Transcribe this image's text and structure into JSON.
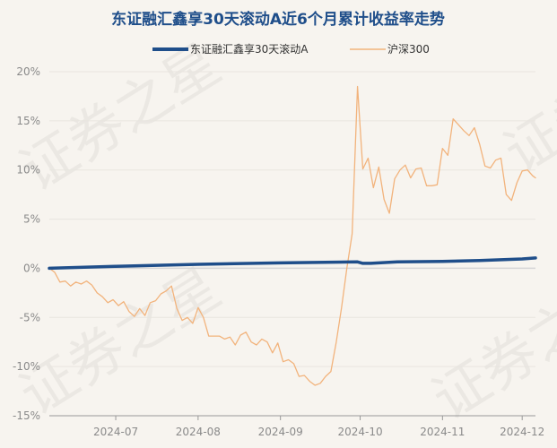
{
  "chart_data": {
    "type": "line",
    "title": "东证融汇鑫享30天滚动A近6个月累计收益率走势",
    "xlabel": "",
    "ylabel": "",
    "ylim": [
      -15,
      20
    ],
    "yticks": [
      "20%",
      "15%",
      "10%",
      "5%",
      "0%",
      "-5%",
      "-10%",
      "-15%"
    ],
    "yticks_values": [
      20,
      15,
      10,
      5,
      0,
      -5,
      -10,
      -15
    ],
    "xticks": [
      "2024-07",
      "2024-08",
      "2024-09",
      "2024-10",
      "2024-11",
      "2024-12"
    ],
    "x_start": "2024-06-06",
    "x_end": "2024-12-06",
    "xtick_dates": [
      "2024-07-01",
      "2024-08-01",
      "2024-09-01",
      "2024-10-01",
      "2024-11-01",
      "2024-12-01"
    ],
    "grid": "horizontal",
    "legend": "top-center",
    "series": [
      {
        "name": "东证融汇鑫享30天滚动A",
        "color": "#1f4e8a",
        "points": [
          [
            "2024-06-06",
            0.0
          ],
          [
            "2024-07-01",
            0.2
          ],
          [
            "2024-08-01",
            0.4
          ],
          [
            "2024-09-01",
            0.55
          ],
          [
            "2024-09-30",
            0.65
          ],
          [
            "2024-10-02",
            0.5
          ],
          [
            "2024-10-05",
            0.5
          ],
          [
            "2024-10-15",
            0.65
          ],
          [
            "2024-11-01",
            0.7
          ],
          [
            "2024-11-15",
            0.8
          ],
          [
            "2024-12-01",
            0.95
          ],
          [
            "2024-12-06",
            1.05
          ]
        ]
      },
      {
        "name": "沪深300",
        "color": "#f2b37c",
        "points": [
          [
            "2024-06-06",
            0.0
          ],
          [
            "2024-06-08",
            -0.4
          ],
          [
            "2024-06-10",
            -1.4
          ],
          [
            "2024-06-12",
            -1.3
          ],
          [
            "2024-06-14",
            -1.8
          ],
          [
            "2024-06-16",
            -1.4
          ],
          [
            "2024-06-18",
            -1.6
          ],
          [
            "2024-06-20",
            -1.3
          ],
          [
            "2024-06-22",
            -1.7
          ],
          [
            "2024-06-24",
            -2.5
          ],
          [
            "2024-06-26",
            -2.9
          ],
          [
            "2024-06-28",
            -3.5
          ],
          [
            "2024-06-30",
            -3.2
          ],
          [
            "2024-07-02",
            -3.8
          ],
          [
            "2024-07-04",
            -3.4
          ],
          [
            "2024-07-06",
            -4.4
          ],
          [
            "2024-07-08",
            -4.9
          ],
          [
            "2024-07-10",
            -4.1
          ],
          [
            "2024-07-12",
            -4.8
          ],
          [
            "2024-07-14",
            -3.5
          ],
          [
            "2024-07-16",
            -3.3
          ],
          [
            "2024-07-18",
            -2.6
          ],
          [
            "2024-07-20",
            -2.3
          ],
          [
            "2024-07-22",
            -1.8
          ],
          [
            "2024-07-24",
            -4.1
          ],
          [
            "2024-07-26",
            -5.3
          ],
          [
            "2024-07-28",
            -5.0
          ],
          [
            "2024-07-30",
            -5.6
          ],
          [
            "2024-08-01",
            -4.0
          ],
          [
            "2024-08-03",
            -5.0
          ],
          [
            "2024-08-05",
            -6.9
          ],
          [
            "2024-08-07",
            -6.9
          ],
          [
            "2024-08-09",
            -6.9
          ],
          [
            "2024-08-11",
            -7.2
          ],
          [
            "2024-08-13",
            -7.0
          ],
          [
            "2024-08-15",
            -7.8
          ],
          [
            "2024-08-17",
            -6.8
          ],
          [
            "2024-08-19",
            -6.5
          ],
          [
            "2024-08-21",
            -7.5
          ],
          [
            "2024-08-23",
            -7.8
          ],
          [
            "2024-08-25",
            -7.2
          ],
          [
            "2024-08-27",
            -7.5
          ],
          [
            "2024-08-29",
            -8.6
          ],
          [
            "2024-08-31",
            -7.6
          ],
          [
            "2024-09-02",
            -9.5
          ],
          [
            "2024-09-04",
            -9.3
          ],
          [
            "2024-09-06",
            -9.7
          ],
          [
            "2024-09-08",
            -11.0
          ],
          [
            "2024-09-10",
            -10.9
          ],
          [
            "2024-09-12",
            -11.5
          ],
          [
            "2024-09-14",
            -11.9
          ],
          [
            "2024-09-16",
            -11.7
          ],
          [
            "2024-09-18",
            -11.0
          ],
          [
            "2024-09-20",
            -10.5
          ],
          [
            "2024-09-22",
            -7.5
          ],
          [
            "2024-09-24",
            -4.0
          ],
          [
            "2024-09-26",
            0.0
          ],
          [
            "2024-09-28",
            3.5
          ],
          [
            "2024-09-30",
            18.5
          ],
          [
            "2024-10-02",
            10.1
          ],
          [
            "2024-10-04",
            11.2
          ],
          [
            "2024-10-06",
            8.2
          ],
          [
            "2024-10-08",
            10.3
          ],
          [
            "2024-10-10",
            7.0
          ],
          [
            "2024-10-12",
            5.6
          ],
          [
            "2024-10-14",
            9.1
          ],
          [
            "2024-10-16",
            10.0
          ],
          [
            "2024-10-18",
            10.5
          ],
          [
            "2024-10-20",
            9.2
          ],
          [
            "2024-10-22",
            10.1
          ],
          [
            "2024-10-24",
            10.2
          ],
          [
            "2024-10-26",
            8.4
          ],
          [
            "2024-10-28",
            8.4
          ],
          [
            "2024-10-30",
            8.5
          ],
          [
            "2024-11-01",
            12.2
          ],
          [
            "2024-11-03",
            11.5
          ],
          [
            "2024-11-05",
            15.2
          ],
          [
            "2024-11-07",
            14.6
          ],
          [
            "2024-11-09",
            14.0
          ],
          [
            "2024-11-11",
            13.5
          ],
          [
            "2024-11-13",
            14.3
          ],
          [
            "2024-11-15",
            12.6
          ],
          [
            "2024-11-17",
            10.4
          ],
          [
            "2024-11-19",
            10.2
          ],
          [
            "2024-11-21",
            11.0
          ],
          [
            "2024-11-23",
            11.2
          ],
          [
            "2024-11-25",
            7.5
          ],
          [
            "2024-11-27",
            6.9
          ],
          [
            "2024-11-29",
            8.7
          ],
          [
            "2024-12-01",
            9.9
          ],
          [
            "2024-12-03",
            10.0
          ],
          [
            "2024-12-05",
            9.4
          ],
          [
            "2024-12-06",
            9.2
          ]
        ]
      }
    ]
  },
  "watermark": [
    "证券之星",
    "证券之星",
    "证券之星",
    "证券之星"
  ]
}
